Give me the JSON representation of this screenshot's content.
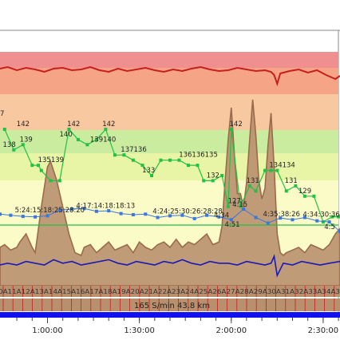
{
  "window": {
    "background": "#ffffff",
    "frame_color": "#888888"
  },
  "chart_data": {
    "type": "line",
    "x_axis": {
      "tick_labels": [
        "1:00:00",
        "1:30:00",
        "2:00:00",
        "2:30:00"
      ],
      "tick_minutes": [
        60,
        90,
        120,
        150
      ],
      "range_minutes": [
        44.5,
        155.5
      ]
    },
    "zones": [
      {
        "color": "#f08f8f"
      },
      {
        "color": "#f5a585"
      },
      {
        "color": "#f8c8a0"
      },
      {
        "color": "#c9ec9e"
      },
      {
        "color": "#e8f5a6"
      },
      {
        "color": "#fbfbc8"
      }
    ],
    "series": [
      {
        "kind": "heart-rate-trace",
        "color": "#c81e1e",
        "x": [
          44.5,
          47,
          50,
          53,
          56,
          59,
          62,
          65,
          68,
          71,
          74,
          77,
          80,
          83,
          86,
          89,
          92,
          95,
          98,
          101,
          104,
          107,
          110,
          113,
          116,
          119,
          122,
          125,
          128,
          131,
          133,
          134,
          135,
          136,
          139,
          142,
          145,
          148,
          151,
          154,
          155.5
        ],
        "y": [
          14,
          12,
          16,
          13,
          15,
          18,
          14,
          13,
          16,
          15,
          12,
          16,
          18,
          14,
          17,
          15,
          13,
          16,
          18,
          15,
          17,
          14,
          12,
          15,
          17,
          16,
          13,
          15,
          17,
          16,
          18,
          22,
          33,
          20,
          17,
          15,
          19,
          16,
          22,
          27,
          23
        ]
      },
      {
        "kind": "speed-trace",
        "color": "#9b6a4c",
        "fill": "#b8906e",
        "x": [
          44.5,
          46,
          48,
          50,
          51,
          53,
          55,
          56,
          58,
          60,
          61,
          63,
          65,
          67,
          69,
          71,
          72,
          74,
          76,
          78,
          80,
          82,
          84,
          86,
          88,
          90,
          92,
          94,
          96,
          98,
          100,
          102,
          104,
          106,
          108,
          110,
          112,
          114,
          116,
          117,
          118,
          119,
          120,
          121,
          122,
          123,
          124,
          125,
          126,
          127,
          128,
          129,
          130,
          131,
          132,
          133,
          134,
          135,
          136,
          137,
          138,
          140,
          142,
          144,
          146,
          148,
          150,
          152,
          154,
          155.5
        ],
        "y": [
          60,
          59,
          61,
          60,
          58,
          55,
          60,
          62,
          45,
          30,
          28,
          35,
          45,
          55,
          62,
          63,
          60,
          59,
          62,
          60,
          58,
          61,
          60,
          59,
          62,
          58,
          60,
          61,
          59,
          58,
          60,
          57,
          60,
          58,
          59,
          57,
          55,
          59,
          58,
          52,
          35,
          20,
          8,
          25,
          40,
          40,
          45,
          36,
          20,
          5,
          18,
          35,
          42,
          38,
          22,
          10,
          30,
          55,
          62,
          63,
          62,
          61,
          60,
          62,
          59,
          60,
          61,
          59,
          55,
          53
        ]
      },
      {
        "kind": "pace-markers-green",
        "color": "#22c044",
        "x": [
          46,
          49,
          52,
          55,
          57,
          58,
          61,
          64,
          67,
          70,
          73,
          76,
          79,
          82,
          85,
          88,
          91,
          94,
          97,
          100,
          103,
          106,
          109,
          111,
          114,
          117,
          119,
          120,
          123,
          126,
          128,
          131,
          133,
          135,
          138,
          141,
          144,
          147,
          150,
          153,
          155
        ],
        "y": [
          142,
          138,
          139,
          135,
          135,
          134,
          132,
          132,
          142,
          140,
          139,
          140,
          142,
          137,
          137,
          136,
          135,
          133,
          136,
          136,
          136,
          135,
          135,
          132,
          132,
          133,
          127,
          142,
          127,
          131,
          130,
          134,
          134,
          134,
          130,
          131,
          129,
          129,
          124,
          125,
          125
        ]
      },
      {
        "kind": "pace-markers-blue",
        "color": "#3a78e0",
        "x": [
          44.5,
          48,
          52,
          56,
          60,
          64,
          68,
          72,
          76,
          80,
          84,
          88,
          92,
          96,
          100,
          104,
          108,
          112,
          116,
          120,
          124,
          128,
          132,
          136,
          140,
          144,
          148,
          152,
          155.5
        ],
        "y": [
          4.24,
          4.26,
          4.28,
          4.29,
          4.27,
          4.17,
          4.15,
          4.14,
          4.19,
          4.18,
          4.23,
          4.25,
          4.24,
          4.3,
          4.27,
          4.26,
          4.32,
          4.26,
          4.29,
          4.34,
          4.15,
          4.3,
          4.4,
          4.31,
          4.34,
          4.3,
          4.36,
          4.38,
          4.55
        ]
      },
      {
        "kind": "cadence-trace",
        "color": "#1a1ab8",
        "x": [
          44.5,
          47,
          50,
          53,
          56,
          59,
          62,
          65,
          68,
          71,
          74,
          77,
          80,
          83,
          86,
          89,
          92,
          95,
          98,
          101,
          104,
          107,
          110,
          113,
          116,
          119,
          122,
          125,
          128,
          131,
          133,
          134,
          135,
          137,
          140,
          143,
          146,
          149,
          152,
          155.5
        ],
        "y": [
          0,
          1,
          0,
          2,
          1,
          0,
          3,
          1,
          2,
          0,
          1,
          2,
          3,
          1,
          0,
          2,
          1,
          0,
          2,
          1,
          3,
          1,
          0,
          2,
          1,
          1,
          0,
          2,
          1,
          0,
          1,
          5,
          -6,
          1,
          0,
          2,
          1,
          0,
          1,
          2
        ]
      }
    ],
    "hr_labels": [
      {
        "text": "142",
        "x": 52,
        "y": 142
      },
      {
        "text": "138",
        "x": 47.5,
        "y": 138
      },
      {
        "text": "139",
        "x": 53,
        "y": 139
      },
      {
        "text": "135139",
        "x": 59,
        "y": 135
      },
      {
        "text": "140",
        "x": 66,
        "y": 140
      },
      {
        "text": "142",
        "x": 68.5,
        "y": 142
      },
      {
        "text": "139140",
        "x": 76,
        "y": 139
      },
      {
        "text": "142",
        "x": 80,
        "y": 142
      },
      {
        "text": "137136",
        "x": 86,
        "y": 137
      },
      {
        "text": "133",
        "x": 93,
        "y": 133
      },
      {
        "text": "136136135",
        "x": 105,
        "y": 136
      },
      {
        "text": "132",
        "x": 114,
        "y": 132
      },
      {
        "text": "142",
        "x": 121.5,
        "y": 142
      },
      {
        "text": "127",
        "x": 121,
        "y": 127
      },
      {
        "text": "131",
        "x": 127,
        "y": 131
      },
      {
        "text": "134134",
        "x": 134.5,
        "y": 134
      },
      {
        "text": "131",
        "x": 139.5,
        "y": 131
      },
      {
        "text": "129",
        "x": 144,
        "y": 129
      },
      {
        "text": "7",
        "x": 44.8,
        "y": 144
      }
    ],
    "pace_labels": [
      {
        "text": "5:24:15:18:25:28:20",
        "x": 53,
        "y": 4.25
      },
      {
        "text": "4:17:14:18:18:13",
        "x": 73,
        "y": 4.17
      },
      {
        "text": "4:24:25:30:26:28:28",
        "x": 98,
        "y": 4.27
      },
      {
        "text": "4:34",
        "x": 118,
        "y": 4.34
      },
      {
        "text": "4:15",
        "x": 124,
        "y": 4.15
      },
      {
        "text": "4:51",
        "x": 121.5,
        "y": 4.51
      },
      {
        "text": "4:35:38:26",
        "x": 134,
        "y": 4.32
      },
      {
        "text": "4:34:30:36",
        "x": 147,
        "y": 4.33
      },
      {
        "text": "4:5",
        "x": 154,
        "y": 4.55
      }
    ],
    "lap_strip": {
      "text": "0A11A12A13A14A15A16A17A18A19A20A21A22A23A24A25A26A27A28A29A30A31A32A33A34A3"
    },
    "summary": {
      "text": "165 S/min 43.8 km"
    }
  }
}
